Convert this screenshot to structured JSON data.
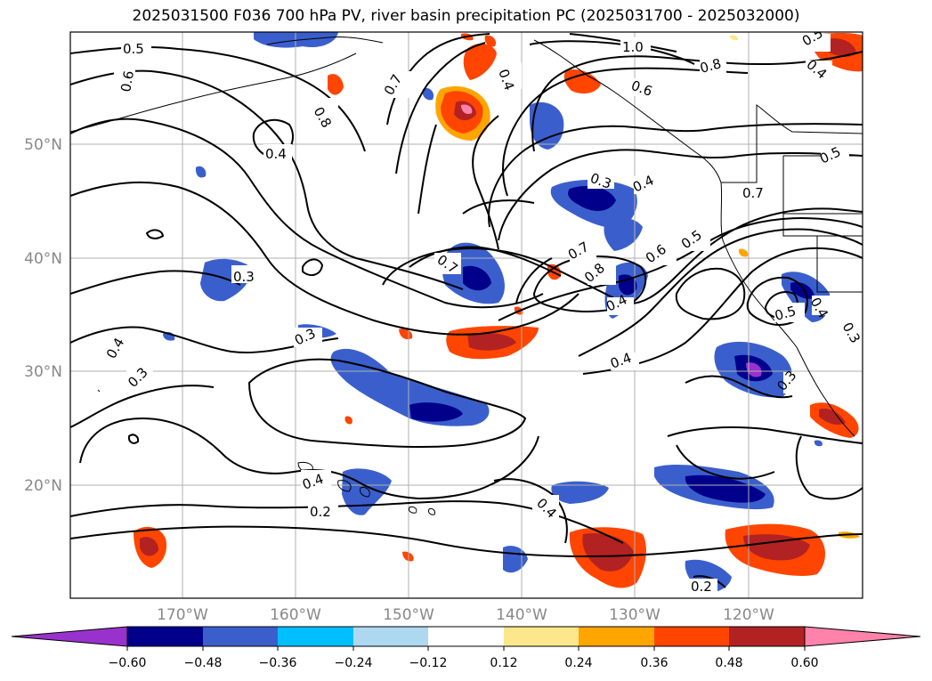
{
  "title": "2025031500 F036 700 hPa PV, river basin precipitation PC (2025031700 - 2025032000)",
  "map": {
    "lon_labels": [
      "170°W",
      "160°W",
      "150°W",
      "140°W",
      "130°W",
      "120°W"
    ],
    "lat_labels": [
      "50°N",
      "40°N",
      "30°N",
      "20°N"
    ],
    "gridlines": true,
    "coastline_color": "#000000"
  },
  "contour_labels": [
    "0.5",
    "0.6",
    "0.8",
    "0.7",
    "0.4",
    "1.0",
    "0.8",
    "0.6",
    "0.5",
    "0.4",
    "0.4",
    "0.3",
    "0.4",
    "0.5",
    "0.7",
    "0.3",
    "0.7",
    "0.7",
    "0.6",
    "0.5",
    "0.8",
    "0.4",
    "0.4",
    "0.5",
    "0.4",
    "0.3",
    "0.3",
    "0.3",
    "0.4",
    "0.3",
    "0.4",
    "0.2",
    "0.4",
    "0.2"
  ],
  "colorbar": {
    "ticks": [
      "−0.60",
      "−0.48",
      "−0.36",
      "−0.24",
      "−0.12",
      "0.12",
      "0.24",
      "0.36",
      "0.48",
      "0.60"
    ],
    "colors": [
      "#9932cc",
      "#00008b",
      "#3a5fcd",
      "#00bfff",
      "#add8f0",
      "#ffffff",
      "#fce78c",
      "#ffa500",
      "#ff4500",
      "#b22222",
      "#ff82ab"
    ]
  }
}
